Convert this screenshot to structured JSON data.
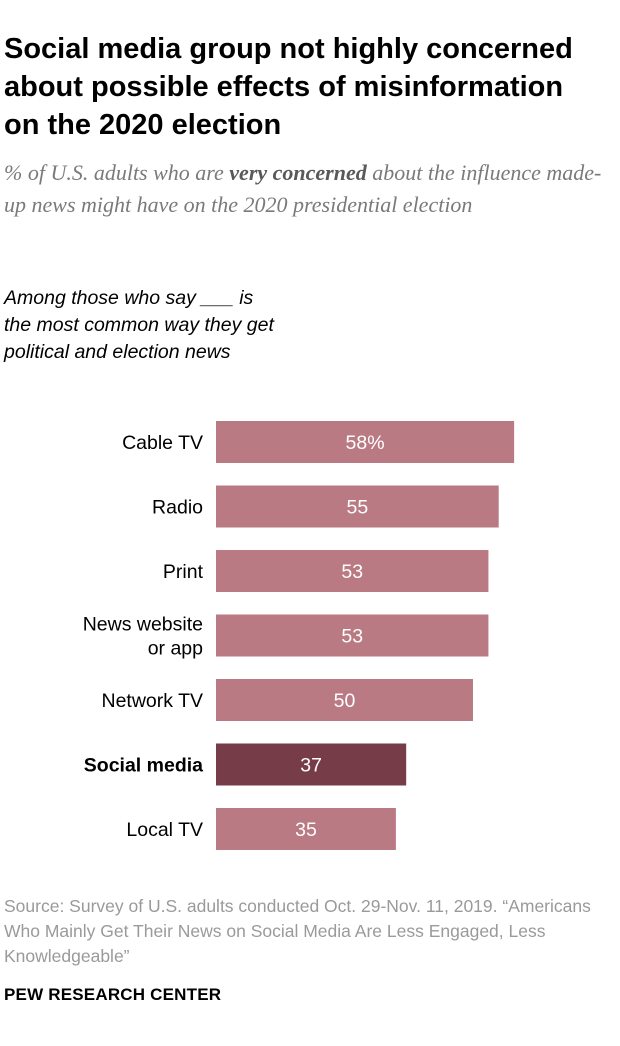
{
  "title": "Social media group not highly concerned about possible effects of misinformation on the 2020 election",
  "subtitle": {
    "pre": "% of U.S. adults who are ",
    "emphasis": "very concerned",
    "post": " about the influence made-up news might have on the 2020 presidential election"
  },
  "group_label": "Among those who say ___ is the most common way they get political and election news",
  "source": "Source: Survey of U.S. adults conducted Oct. 29-Nov. 11, 2019. “Americans Who Mainly Get Their News on Social Media Are Less Engaged, Less Knowledgeable”",
  "footer": "PEW RESEARCH CENTER",
  "colors": {
    "bar": "#b97a84",
    "highlight": "#763c48"
  },
  "chart_data": {
    "type": "bar",
    "orientation": "horizontal",
    "title": "Social media group not highly concerned about possible effects of misinformation on the 2020 election",
    "xlabel": "",
    "ylabel": "",
    "xlim": [
      0,
      100
    ],
    "categories": [
      "Cable TV",
      "Radio",
      "Print",
      "News website or app",
      "Network TV",
      "Social media",
      "Local TV"
    ],
    "category_lines": [
      [
        "Cable TV"
      ],
      [
        "Radio"
      ],
      [
        "Print"
      ],
      [
        "News website",
        "or app"
      ],
      [
        "Network TV"
      ],
      [
        "Social media"
      ],
      [
        "Local TV"
      ]
    ],
    "values": [
      58,
      55,
      53,
      53,
      50,
      37,
      35
    ],
    "value_labels": [
      "58%",
      "55",
      "53",
      "53",
      "50",
      "37",
      "35"
    ],
    "highlight_index": 5
  }
}
